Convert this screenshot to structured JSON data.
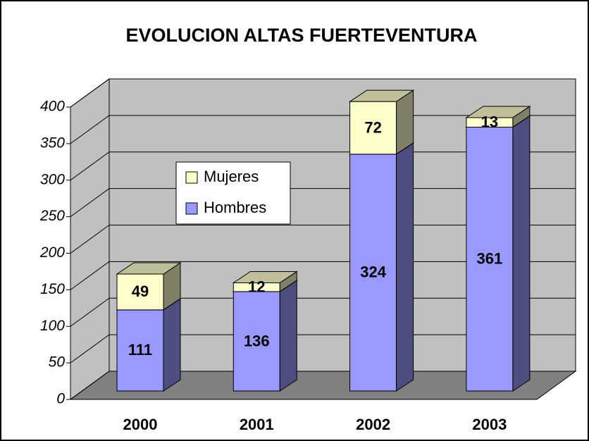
{
  "chart_data": {
    "type": "bar",
    "stacked": true,
    "title": "EVOLUCION ALTAS FUERTEVENTURA",
    "categories": [
      "2000",
      "2001",
      "2002",
      "2003"
    ],
    "series": [
      {
        "name": "Hombres",
        "color": "#9999ff",
        "values": [
          111,
          136,
          324,
          361
        ]
      },
      {
        "name": "Mujeres",
        "color": "#ffffcc",
        "values": [
          49,
          12,
          72,
          13
        ]
      }
    ],
    "ylim": [
      0,
      400
    ],
    "yticks": [
      0,
      50,
      100,
      150,
      200,
      250,
      300,
      350,
      400
    ],
    "grid": true,
    "legend": "left"
  }
}
